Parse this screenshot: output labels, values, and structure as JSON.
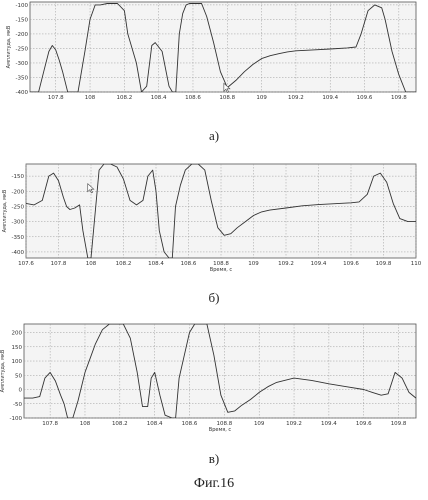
{
  "figure_caption": "Фиг.16",
  "chart_data": [
    {
      "type": "line",
      "panel_label": "а)",
      "xlabel": "",
      "ylabel": "Амплитуда, мкВ",
      "x_ticks": [
        "107.8",
        "108",
        "108.2",
        "108.4",
        "108.6",
        "108.8",
        "109",
        "109.2",
        "109.4",
        "109.6",
        "109.8"
      ],
      "y_ticks": [
        "-100",
        "-150",
        "-200",
        "-250",
        "-300",
        "-350",
        "-400"
      ],
      "xlim": [
        107.65,
        109.9
      ],
      "ylim": [
        -400,
        -90
      ],
      "grid": true,
      "cursor": {
        "x": 108.78,
        "y": -370
      },
      "series": [
        {
          "x": [
            107.65,
            107.7,
            107.73,
            107.76,
            107.78,
            107.8,
            107.82,
            107.84,
            107.87,
            107.93,
            107.97,
            108.0,
            108.03,
            108.06,
            108.1,
            108.12,
            108.16,
            108.2,
            108.22,
            108.27,
            108.3,
            108.33,
            108.36,
            108.38,
            108.42,
            108.46,
            108.48,
            108.5,
            108.52,
            108.54,
            108.56,
            108.58,
            108.62,
            108.65,
            108.68,
            108.72,
            108.76,
            108.8,
            108.85,
            108.9,
            108.95,
            109.0,
            109.05,
            109.1,
            109.15,
            109.2,
            109.3,
            109.4,
            109.5,
            109.55,
            109.58,
            109.62,
            109.66,
            109.7,
            109.72,
            109.76,
            109.8,
            109.84,
            109.88,
            109.9
          ],
          "y": [
            -400,
            -400,
            -330,
            -260,
            -240,
            -255,
            -290,
            -330,
            -400,
            -400,
            -260,
            -150,
            -100,
            -100,
            -95,
            -95,
            -95,
            -120,
            -200,
            -300,
            -400,
            -380,
            -240,
            -230,
            -260,
            -380,
            -400,
            -400,
            -200,
            -130,
            -100,
            -95,
            -95,
            -95,
            -140,
            -230,
            -330,
            -385,
            -360,
            -330,
            -305,
            -285,
            -275,
            -268,
            -262,
            -258,
            -255,
            -252,
            -248,
            -245,
            -200,
            -120,
            -100,
            -110,
            -150,
            -260,
            -340,
            -400,
            -400,
            -400
          ]
        }
      ]
    },
    {
      "type": "line",
      "panel_label": "б)",
      "xlabel": "Время, с",
      "ylabel": "Амплитуда, мкВ",
      "x_ticks": [
        "107.6",
        "107.8",
        "108",
        "108.2",
        "108.4",
        "108.6",
        "108.8",
        "109",
        "109.2",
        "109.4",
        "109.6",
        "109.8",
        "110"
      ],
      "y_ticks": [
        "-150",
        "-200",
        "-250",
        "-300",
        "-350",
        "-400"
      ],
      "xlim": [
        107.6,
        110.0
      ],
      "ylim": [
        -420,
        -110
      ],
      "grid": true,
      "cursor": {
        "x": 107.98,
        "y": -175
      },
      "series": [
        {
          "x": [
            107.6,
            107.65,
            107.7,
            107.74,
            107.77,
            107.8,
            107.83,
            107.85,
            107.87,
            107.9,
            107.93,
            107.95,
            107.98,
            108.0,
            108.05,
            108.08,
            108.12,
            108.16,
            108.2,
            108.24,
            108.28,
            108.32,
            108.35,
            108.38,
            108.4,
            108.42,
            108.45,
            108.48,
            108.5,
            108.52,
            108.55,
            108.58,
            108.62,
            108.66,
            108.7,
            108.74,
            108.78,
            108.82,
            108.86,
            108.9,
            108.95,
            109.0,
            109.05,
            109.1,
            109.2,
            109.3,
            109.4,
            109.5,
            109.6,
            109.65,
            109.7,
            109.74,
            109.78,
            109.82,
            109.86,
            109.9,
            109.95,
            110.0
          ],
          "y": [
            -240,
            -245,
            -230,
            -150,
            -140,
            -165,
            -220,
            -250,
            -260,
            -255,
            -245,
            -330,
            -420,
            -420,
            -130,
            -110,
            -110,
            -120,
            -160,
            -230,
            -245,
            -230,
            -150,
            -130,
            -200,
            -330,
            -400,
            -420,
            -420,
            -250,
            -180,
            -130,
            -110,
            -110,
            -130,
            -230,
            -320,
            -345,
            -340,
            -320,
            -300,
            -280,
            -268,
            -262,
            -255,
            -248,
            -244,
            -241,
            -238,
            -235,
            -210,
            -150,
            -140,
            -170,
            -240,
            -290,
            -300,
            -300
          ]
        }
      ]
    },
    {
      "type": "line",
      "panel_label": "в)",
      "xlabel": "Время, с",
      "ylabel": "Амплитуда, мкВ",
      "x_ticks": [
        "107.8",
        "108",
        "108.2",
        "108.4",
        "108.6",
        "108.8",
        "109",
        "109.2",
        "109.4",
        "109.6",
        "109.8"
      ],
      "y_ticks": [
        "200",
        "150",
        "100",
        "50",
        "0",
        "-50",
        "-100"
      ],
      "xlim": [
        107.65,
        109.9
      ],
      "ylim": [
        -100,
        230
      ],
      "grid": true,
      "series": [
        {
          "x": [
            107.65,
            107.7,
            107.74,
            107.77,
            107.8,
            107.83,
            107.86,
            107.88,
            107.9,
            107.93,
            107.96,
            108.0,
            108.03,
            108.06,
            108.1,
            108.14,
            108.18,
            108.22,
            108.26,
            108.3,
            108.33,
            108.36,
            108.38,
            108.4,
            108.43,
            108.46,
            108.5,
            108.52,
            108.54,
            108.57,
            108.6,
            108.63,
            108.66,
            108.7,
            108.74,
            108.78,
            108.82,
            108.86,
            108.9,
            108.95,
            109.0,
            109.05,
            109.1,
            109.2,
            109.3,
            109.4,
            109.5,
            109.6,
            109.65,
            109.7,
            109.74,
            109.78,
            109.82,
            109.86,
            109.9
          ],
          "y": [
            -30,
            -30,
            -25,
            40,
            60,
            30,
            -20,
            -50,
            -100,
            -100,
            -40,
            60,
            110,
            160,
            210,
            230,
            230,
            230,
            180,
            60,
            -60,
            -60,
            40,
            60,
            -20,
            -90,
            -100,
            -100,
            40,
            120,
            200,
            230,
            230,
            230,
            120,
            -20,
            -80,
            -75,
            -55,
            -35,
            -10,
            10,
            25,
            40,
            32,
            20,
            10,
            0,
            -10,
            -20,
            -15,
            60,
            40,
            -10,
            -30
          ]
        }
      ]
    }
  ]
}
